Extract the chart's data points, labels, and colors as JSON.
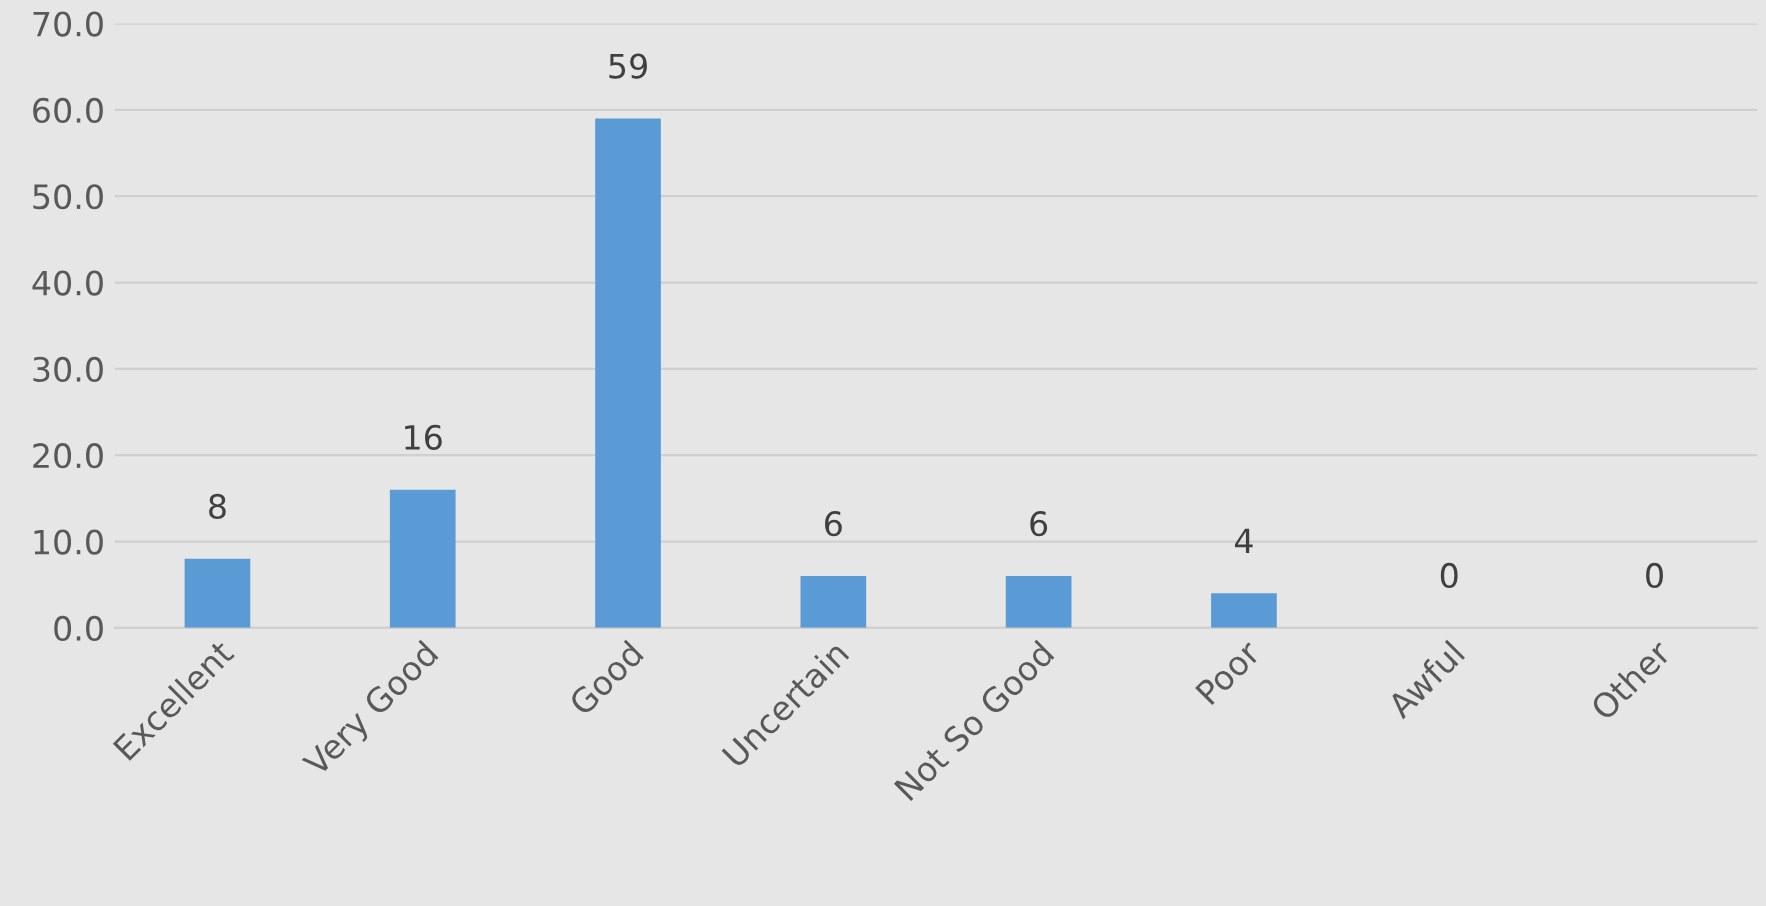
{
  "chart_data": {
    "type": "bar",
    "categories": [
      "Excellent",
      "Very Good",
      "Good",
      "Uncertain",
      "Not So Good",
      "Poor",
      "Awful",
      "Other"
    ],
    "values": [
      8,
      16,
      59,
      6,
      6,
      4,
      0,
      0
    ],
    "color": "#5b9bd5",
    "ylim": [
      0,
      70
    ],
    "yticks": [
      {
        "value": 0,
        "label": "0.0"
      },
      {
        "value": 10,
        "label": "10.0"
      },
      {
        "value": 20,
        "label": "20.0"
      },
      {
        "value": 30,
        "label": "30.0"
      },
      {
        "value": 40,
        "label": "40.0"
      },
      {
        "value": 50,
        "label": "50.0"
      },
      {
        "value": 60,
        "label": "60.0"
      },
      {
        "value": 70,
        "label": "70.0"
      }
    ],
    "grid": "y",
    "data_labels": true,
    "legend": false
  }
}
